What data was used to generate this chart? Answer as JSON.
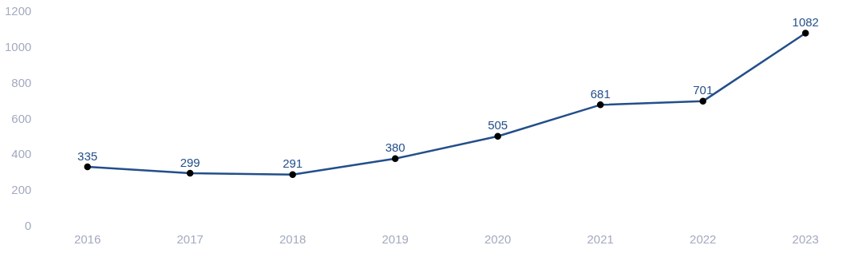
{
  "chart_data": {
    "type": "line",
    "categories": [
      "2016",
      "2017",
      "2018",
      "2019",
      "2020",
      "2021",
      "2022",
      "2023"
    ],
    "series": [
      {
        "color": "#234f8a",
        "values": [
          335,
          299,
          291,
          380,
          505,
          681,
          701,
          1082
        ]
      }
    ],
    "ylim": [
      0,
      1200
    ],
    "yticks": [
      0,
      200,
      400,
      600,
      800,
      1000,
      1200
    ],
    "grid": false,
    "legend": false,
    "marker": "circle",
    "line_style": "solid",
    "data_labels": true
  }
}
